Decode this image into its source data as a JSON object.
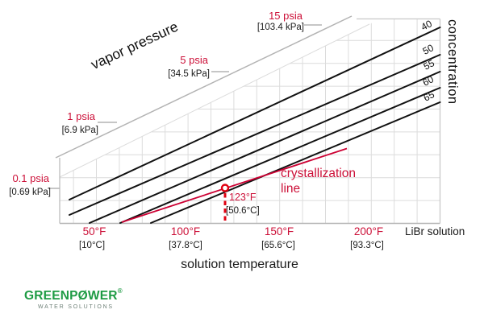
{
  "axes": {
    "vapor_pressure_label": "vapor pressure",
    "concentration_label": "concentration",
    "solution_temperature_label": "solution temperature",
    "libr_solution_label": "LiBr solution"
  },
  "pressure_ticks": [
    {
      "psia": "15 psia",
      "kpa": "[103.4 kPa]"
    },
    {
      "psia": "5 psia",
      "kpa": "[34.5 kPa]"
    },
    {
      "psia": "1 psia",
      "kpa": "[6.9 kPa]"
    },
    {
      "psia": "0.1 psia",
      "kpa": "[0.69 kPa]"
    }
  ],
  "temperature_ticks": [
    {
      "f": "50°F",
      "c": "[10°C]"
    },
    {
      "f": "100°F",
      "c": "[37.8°C]"
    },
    {
      "f": "150°F",
      "c": "[65.6°C]"
    },
    {
      "f": "200°F",
      "c": "[93.3°C]"
    }
  ],
  "concentration_lines": [
    "40",
    "50",
    "55",
    "60",
    "65"
  ],
  "crystallization": {
    "label": "crystallization\nline",
    "point_temp_f": "123°F",
    "point_temp_c": "[50.6°C]"
  },
  "logo": {
    "brand": "GREENPØWER",
    "registered": "®",
    "tagline": "WATER SOLUTIONS"
  },
  "colors": {
    "red_text": "#cc1038",
    "crystallization_line_red": "#cc0033",
    "marker_red": "#e00010",
    "concentration_line_black": "#111111",
    "grid_gray": "#dcdcdc",
    "logo_green": "#1e9b44"
  },
  "chart_data": {
    "type": "line",
    "title": "",
    "xlabel": "solution temperature",
    "x_axis_right_label": "LiBr solution",
    "x_ticks_F": [
      50,
      100,
      150,
      200
    ],
    "x_ticks_C": [
      10,
      37.8,
      65.6,
      93.3
    ],
    "pressure_axis_label": "vapor pressure",
    "pressure_ticks_psia": [
      0.1,
      1,
      5,
      15
    ],
    "pressure_ticks_kPa": [
      0.69,
      6.9,
      34.5,
      103.4
    ],
    "series_axis_label": "concentration",
    "series": [
      {
        "name": "40",
        "role": "LiBr concentration line"
      },
      {
        "name": "50",
        "role": "LiBr concentration line"
      },
      {
        "name": "55",
        "role": "LiBr concentration line"
      },
      {
        "name": "60",
        "role": "LiBr concentration line"
      },
      {
        "name": "65",
        "role": "LiBr concentration line"
      }
    ],
    "annotations": [
      {
        "label": "crystallization line"
      },
      {
        "label": "marked crystallization point",
        "temp_F": 123,
        "temp_C": 50.6
      }
    ],
    "grid": true,
    "legend_position": "labels-on-lines"
  }
}
